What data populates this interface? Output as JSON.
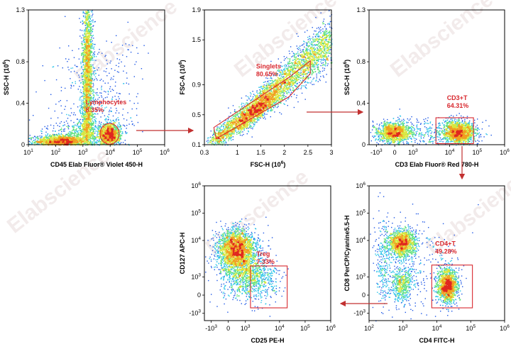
{
  "watermark": "Elabscience",
  "colors": {
    "gate": "#d8282e",
    "density": [
      "#0a1aa8",
      "#1f58e6",
      "#27c2e8",
      "#5fe07a",
      "#d8e63a",
      "#f0a020",
      "#e0281e"
    ]
  },
  "chart_data": [
    {
      "id": "p1",
      "type": "scatter",
      "xlabel": "CD45 Elab Fluor® Violet 450-H",
      "ylabel": "SSC-H",
      "ylabel_exp": "(10",
      "ylabel_exp_sup": "6",
      "ylabel_exp_close": ")",
      "x_scale": "log",
      "x_range": [
        1,
        6
      ],
      "x_ticks": [
        {
          "v": 1,
          "t": "10",
          "s": "1"
        },
        {
          "v": 2,
          "t": "10",
          "s": "2"
        },
        {
          "v": 3,
          "t": "10",
          "s": "3"
        },
        {
          "v": 4,
          "t": "10",
          "s": "4"
        },
        {
          "v": 5,
          "t": "10",
          "s": "5"
        },
        {
          "v": 6,
          "t": "10",
          "s": "6"
        }
      ],
      "y_scale": "linear",
      "y_range": [
        0,
        1.3
      ],
      "y_ticks": [
        {
          "v": 0,
          "t": "0"
        },
        {
          "v": 0.4,
          "t": "0.4"
        },
        {
          "v": 0.8,
          "t": "0.8"
        },
        {
          "v": 1.3,
          "t": "1.3"
        }
      ],
      "clusters": [
        {
          "cx": 2.15,
          "cy": 0.035,
          "sx": 0.45,
          "sy": 0.03,
          "n": 1300
        },
        {
          "cx": 3.15,
          "cy": 0.75,
          "sx": 0.1,
          "sy": 0.38,
          "n": 1900
        },
        {
          "cx": 3.15,
          "cy": 0.2,
          "sx": 0.12,
          "sy": 0.12,
          "n": 450
        },
        {
          "cx": 3.95,
          "cy": 0.1,
          "sx": 0.2,
          "sy": 0.055,
          "n": 1200
        },
        {
          "cx": 2.8,
          "cy": 0.07,
          "sx": 0.55,
          "sy": 0.08,
          "n": 600
        },
        {
          "cx": 3.5,
          "cy": 0.35,
          "sx": 0.8,
          "sy": 0.35,
          "n": 500
        }
      ],
      "gate": {
        "shape": "ellipse",
        "cx": 3.98,
        "cy": 0.105,
        "rx": 0.35,
        "ry": 0.1,
        "label": "Lymphocytes",
        "value": "8.35%",
        "lx": 3.1,
        "ly": 0.39
      }
    },
    {
      "id": "p2",
      "type": "scatter",
      "xlabel": "FSC-H",
      "xlabel_exp": "(10",
      "xlabel_exp_sup": "6",
      "xlabel_exp_close": ")",
      "ylabel": "FSC-A",
      "ylabel_exp": "(10",
      "ylabel_exp_sup": "6",
      "ylabel_exp_close": ")",
      "x_scale": "linear",
      "x_range": [
        0.3,
        3
      ],
      "x_ticks": [
        {
          "v": 0.3,
          "t": "0.3"
        },
        {
          "v": 1,
          "t": "1"
        },
        {
          "v": 1.5,
          "t": "1.5"
        },
        {
          "v": 2,
          "t": "2"
        },
        {
          "v": 2.5,
          "t": "2.5"
        },
        {
          "v": 3,
          "t": "3"
        }
      ],
      "y_scale": "linear",
      "y_range": [
        0.1,
        1.9
      ],
      "y_ticks": [
        {
          "v": 0.1,
          "t": "0.1"
        },
        {
          "v": 0.5,
          "t": "0.5"
        },
        {
          "v": 0.9,
          "t": "0.9"
        },
        {
          "v": 1.5,
          "t": "1.5"
        },
        {
          "v": 1.9,
          "t": "1.9"
        }
      ],
      "diagonal": {
        "x0": 0.45,
        "y0": 0.12,
        "x1": 3.0,
        "y1": 1.5,
        "spread": 0.13,
        "n": 3500,
        "peak": {
          "cx": 1.45,
          "cy": 0.58,
          "sx": 0.28,
          "sy": 0.07,
          "n": 900
        }
      },
      "gate": {
        "shape": "polygon",
        "points": [
          [
            0.55,
            0.18
          ],
          [
            2.1,
            0.74
          ],
          [
            2.55,
            1.05
          ],
          [
            2.55,
            1.22
          ],
          [
            2.1,
            1.0
          ],
          [
            0.5,
            0.33
          ]
        ],
        "label": "Singlets",
        "value": "80.65%",
        "lx": 1.4,
        "ly": 1.12
      }
    },
    {
      "id": "p3",
      "type": "scatter",
      "xlabel": "CD3 Elab Fluor® Red 780-H",
      "ylabel": "SSC-H",
      "ylabel_exp": "(10",
      "ylabel_exp_sup": "6",
      "ylabel_exp_close": ")",
      "x_scale": "biex",
      "x_range": [
        -1.4,
        6
      ],
      "x_ticks": [
        {
          "v": -1,
          "t": "-10",
          "s": "3"
        },
        {
          "v": 0,
          "t": "0"
        },
        {
          "v": 1,
          "t": "10",
          "s": "3"
        },
        {
          "v": 3,
          "t": "10",
          "s": "4"
        },
        {
          "v": 4.5,
          "t": "10",
          "s": "5"
        },
        {
          "v": 6,
          "t": "10",
          "s": "6"
        }
      ],
      "y_scale": "linear",
      "y_range": [
        0,
        1.3
      ],
      "y_ticks": [
        {
          "v": 0,
          "t": "0"
        },
        {
          "v": 0.4,
          "t": "0.4"
        },
        {
          "v": 0.8,
          "t": "0.8"
        },
        {
          "v": 1.3,
          "t": "1.3"
        }
      ],
      "clusters": [
        {
          "cx": -0.05,
          "cy": 0.12,
          "sx": 0.45,
          "sy": 0.05,
          "n": 1300
        },
        {
          "cx": 3.5,
          "cy": 0.12,
          "sx": 0.45,
          "sy": 0.055,
          "n": 1600
        },
        {
          "cx": 1.8,
          "cy": 0.12,
          "sx": 1.2,
          "sy": 0.07,
          "n": 300
        }
      ],
      "gate": {
        "shape": "rect",
        "x0": 2.25,
        "y0": 0.01,
        "x1": 4.3,
        "y1": 0.26,
        "label": "CD3+T",
        "value": "64.31%",
        "lx": 2.85,
        "ly": 0.43
      }
    },
    {
      "id": "p4",
      "type": "scatter",
      "xlabel": "CD25 PE-H",
      "ylabel": "CD127 APC-H",
      "x_scale": "biex",
      "x_range": [
        -1.4,
        6
      ],
      "x_ticks": [
        {
          "v": -1,
          "t": "-10",
          "s": "3"
        },
        {
          "v": 0,
          "t": "0"
        },
        {
          "v": 1,
          "t": "10",
          "s": "3"
        },
        {
          "v": 3,
          "t": "10",
          "s": "4"
        },
        {
          "v": 4.5,
          "t": "10",
          "s": "5"
        },
        {
          "v": 6,
          "t": "10",
          "s": "6"
        }
      ],
      "y_scale": "biex",
      "y_range": [
        -1.4,
        6
      ],
      "y_ticks": [
        {
          "v": -1,
          "t": "-10",
          "s": "3"
        },
        {
          "v": 0,
          "t": "0"
        },
        {
          "v": 1,
          "t": "10",
          "s": "3"
        },
        {
          "v": 3,
          "t": "10",
          "s": "4"
        },
        {
          "v": 4.5,
          "t": "10",
          "s": "5"
        },
        {
          "v": 6,
          "t": "10",
          "s": "6"
        }
      ],
      "clusters": [
        {
          "cx": 0.45,
          "cy": 2.55,
          "sx": 0.55,
          "sy": 0.55,
          "n": 2200
        },
        {
          "cx": 0.8,
          "cy": 1.3,
          "sx": 0.7,
          "sy": 0.75,
          "n": 1000
        },
        {
          "cx": 2.0,
          "cy": 0.8,
          "sx": 0.55,
          "sy": 0.55,
          "n": 300
        }
      ],
      "gate": {
        "shape": "rect",
        "x0": 1.3,
        "y0": -0.7,
        "x1": 3.45,
        "y1": 1.6,
        "label": "Treg",
        "value": "7.33%",
        "lx": 1.65,
        "ly": 2.15
      }
    },
    {
      "id": "p5",
      "type": "scatter",
      "xlabel": "CD4 FITC-H",
      "ylabel": "CD8 PerCP/Cyanine5.5-H",
      "x_scale": "log",
      "x_range": [
        2,
        6
      ],
      "x_ticks": [
        {
          "v": 2,
          "t": "10",
          "s": "2"
        },
        {
          "v": 3,
          "t": "10",
          "s": "3"
        },
        {
          "v": 4,
          "t": "10",
          "s": "4"
        },
        {
          "v": 5,
          "t": "10",
          "s": "5"
        },
        {
          "v": 6,
          "t": "10",
          "s": "6"
        }
      ],
      "y_scale": "biex",
      "y_range": [
        -1.4,
        6
      ],
      "y_ticks": [
        {
          "v": -1,
          "t": "-10",
          "s": "3"
        },
        {
          "v": 0,
          "t": "0"
        },
        {
          "v": 1,
          "t": "10",
          "s": "3"
        },
        {
          "v": 3,
          "t": "10",
          "s": "4"
        },
        {
          "v": 4.5,
          "t": "10",
          "s": "5"
        },
        {
          "v": 6,
          "t": "10",
          "s": "6"
        }
      ],
      "clusters": [
        {
          "cx": 2.95,
          "cy": 2.85,
          "sx": 0.2,
          "sy": 0.38,
          "n": 1300
        },
        {
          "cx": 2.95,
          "cy": 0.6,
          "sx": 0.16,
          "sy": 0.5,
          "n": 500
        },
        {
          "cx": 4.3,
          "cy": 0.55,
          "sx": 0.15,
          "sy": 0.45,
          "n": 1400
        },
        {
          "cx": 2.4,
          "cy": 1.8,
          "sx": 0.1,
          "sy": 1.2,
          "n": 250
        },
        {
          "cx": 3.5,
          "cy": 1.5,
          "sx": 0.6,
          "sy": 1.4,
          "n": 250
        }
      ],
      "gate": {
        "shape": "rect",
        "x0": 3.85,
        "y0": -0.7,
        "x1": 5.05,
        "y1": 1.65,
        "label": "CD4+T",
        "value": "49.28%",
        "lx": 3.95,
        "ly": 2.7
      }
    }
  ]
}
